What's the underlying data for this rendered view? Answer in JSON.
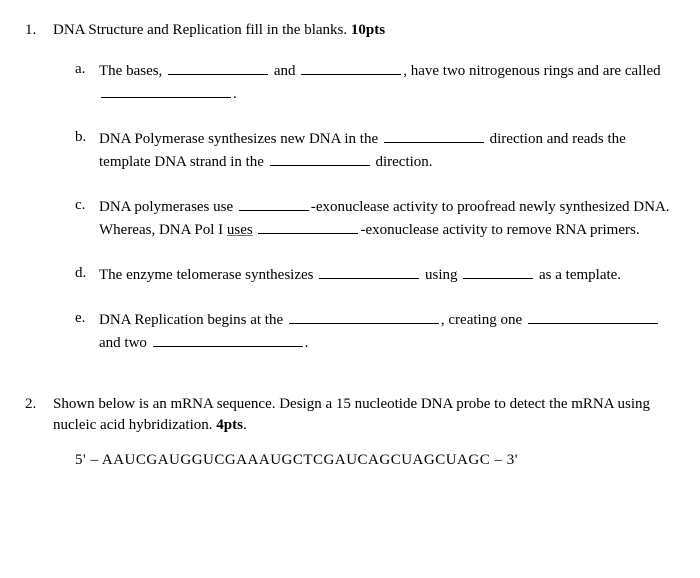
{
  "q1": {
    "number": "1.",
    "title_pre": "DNA Structure and Replication fill in the blanks. ",
    "title_pts": "10pts",
    "items": {
      "a": {
        "letter": "a.",
        "t1": "The bases, ",
        "t2": " and ",
        "t3": ", have two nitrogenous rings and are called ",
        "t4": "."
      },
      "b": {
        "letter": "b.",
        "t1": "DNA Polymerase synthesizes new DNA in the ",
        "t2": " direction and reads the template DNA strand in the ",
        "t3": " direction."
      },
      "c": {
        "letter": "c.",
        "t1": "DNA polymerases use ",
        "t2": "-exonuclease activity to proofread newly synthesized DNA. Whereas, DNA Pol I ",
        "uses": "uses",
        "t3": " ",
        "t4": "-exonuclease activity to remove RNA primers."
      },
      "d": {
        "letter": "d.",
        "t1": " The enzyme telomerase synthesizes ",
        "t2": " using ",
        "t3": " as a template."
      },
      "e": {
        "letter": "e.",
        "t1": "DNA Replication begins at the ",
        "t2": ", creating one ",
        "t3": " and two ",
        "t4": "."
      }
    }
  },
  "q2": {
    "number": "2.",
    "body_pre": "Shown below is an mRNA sequence.  Design a 15 nucleotide DNA probe to detect the mRNA using nucleic acid hybridization. ",
    "body_pts": "4pts",
    "body_end": ".",
    "seq": "5'  –  AAUCGAUGGUCGAAAUGCTCGAUCAGCUAGCUAGC  –  3'"
  }
}
